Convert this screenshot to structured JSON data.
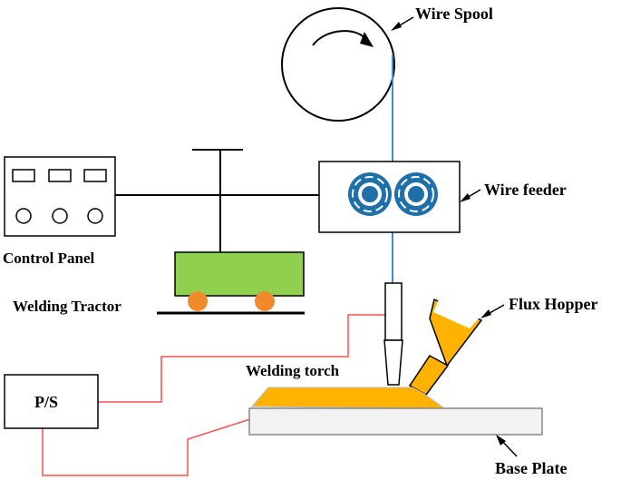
{
  "diagram": {
    "labels": {
      "wire_spool": "Wire Spool",
      "wire_feeder": "Wire feeder",
      "control_panel": "Control Panel",
      "welding_tractor": "Welding Tractor",
      "flux_hopper": "Flux Hopper",
      "welding_torch": "Welding torch",
      "power_supply": "P/S",
      "base_plate": "Base Plate"
    },
    "colors": {
      "wire": "#3b8fd9",
      "flux": "#ffb300",
      "tractor_body": "#8fd14f",
      "tractor_wheels": "#f08a2c",
      "cable": "#ff4d4d",
      "roller_ring": "#1f6fa8",
      "roller_white": "#ffffff",
      "plate_fill": "#f2f2f2",
      "outline": "#000000"
    }
  }
}
